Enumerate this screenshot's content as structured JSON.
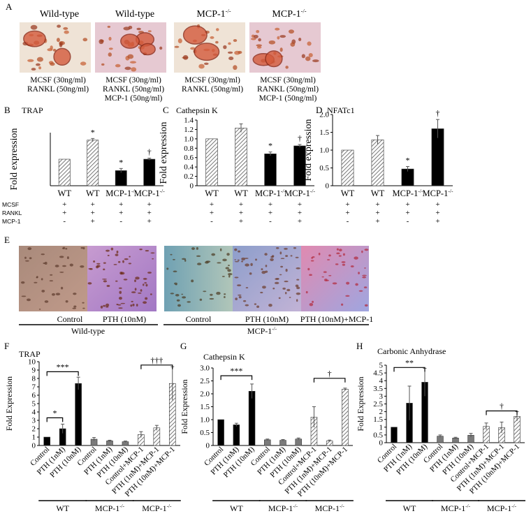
{
  "panel_a": {
    "letter": "A",
    "images": [
      {
        "title": "Wild-type",
        "caption": [
          "MCSF (30ng/ml)",
          "RANKL (50ng/ml)"
        ]
      },
      {
        "title": "Wild-type",
        "caption": [
          "MCSF (30ng/ml)",
          "RANKL (50ng/ml)",
          "MCP-1 (50ng/ml)"
        ]
      },
      {
        "title": "MCP-1",
        "caption": [
          "MCSF (30ng/ml)",
          "RANKL (50ng/ml)"
        ]
      },
      {
        "title": "MCP-1",
        "caption": [
          "MCSF (30ng/ml)",
          "RANKL (50ng/ml)",
          "MCP-1 (50ng/ml)"
        ]
      }
    ],
    "superscript": "-/-"
  },
  "panel_e": {
    "letter": "E",
    "captions": [
      "Control",
      "PTH (10nM)",
      "Control",
      "PTH (10nM)",
      "PTH (10nM)+MCP-1"
    ],
    "group_labels": [
      "Wild-type",
      "MCP-1"
    ],
    "superscript": "-/-"
  },
  "treatment_table": {
    "rows": [
      "MCSF",
      "RANKL",
      "MCP-1"
    ],
    "marks": [
      [
        "+",
        "+",
        "+",
        "+"
      ],
      [
        "+",
        "+",
        "+",
        "+"
      ],
      [
        "-",
        "+",
        "-",
        "+"
      ]
    ]
  },
  "chart_data": [
    {
      "panel": "B",
      "type": "bar",
      "title": "TRAP",
      "ylabel": "Fold expression",
      "categories": [
        "WT",
        "WT",
        "MCP-1-/-",
        "MCP-1-/-"
      ],
      "values": [
        1.0,
        1.72,
        0.57,
        1.0
      ],
      "errors": [
        0,
        0.06,
        0.08,
        0.04
      ],
      "patterns": [
        "hatch",
        "hatch",
        "solid",
        "solid"
      ],
      "annotations": [
        "",
        "*",
        "*",
        "†"
      ],
      "ylim": [
        0,
        2.0
      ],
      "ticks": []
    },
    {
      "panel": "C",
      "type": "bar",
      "title": "Cathepsin K",
      "ylabel": "Fold expression",
      "categories": [
        "WT",
        "WT",
        "MCP-1-/-",
        "MCP-1-/-"
      ],
      "values": [
        1.0,
        1.23,
        0.68,
        0.85
      ],
      "errors": [
        0,
        0.09,
        0.04,
        0.03
      ],
      "patterns": [
        "hatch",
        "hatch",
        "solid",
        "solid"
      ],
      "annotations": [
        "",
        "",
        "*",
        "†"
      ],
      "ylim": [
        0,
        1.4
      ],
      "ticks": [
        "0",
        "0.2",
        "0.4",
        "0.6",
        "0.8",
        "1.0",
        "1.2",
        "1.4"
      ]
    },
    {
      "panel": "D",
      "type": "bar",
      "title": "NFATc1",
      "ylabel": "Fold expression",
      "categories": [
        "WT",
        "WT",
        "MCP-1-/-",
        "MCP-1-/-"
      ],
      "values": [
        1.0,
        1.29,
        0.47,
        1.6
      ],
      "errors": [
        0,
        0.12,
        0.07,
        0.26
      ],
      "patterns": [
        "hatch",
        "hatch",
        "solid",
        "solid"
      ],
      "annotations": [
        "",
        "",
        "*",
        "†"
      ],
      "ylim": [
        0,
        2.0
      ],
      "ticks": [
        "0",
        "0.5",
        "1.0",
        "1.5",
        "2.0"
      ]
    },
    {
      "panel": "F",
      "type": "bar",
      "title": "TRAP",
      "ylabel": "Fold Expression",
      "categories": [
        "Control",
        "PTH (1nM)",
        "PTH (10nM)",
        "Control",
        "PTH (1nM)",
        "PTH (10nM)",
        "Control+MCP-1",
        "PTH (1nM)+MCP-1",
        "PTH (10nM)+MCP-1"
      ],
      "values": [
        1.0,
        2.0,
        7.4,
        0.75,
        0.55,
        0.45,
        1.3,
        2.1,
        7.4
      ],
      "errors": [
        0,
        0.55,
        0.75,
        0.2,
        0.08,
        0.08,
        0.35,
        0.3,
        2.0
      ],
      "patterns": [
        "solid",
        "solid",
        "solid",
        "gray",
        "gray",
        "gray",
        "hatch",
        "hatch",
        "hatch"
      ],
      "ylim": [
        0,
        10
      ],
      "ticks": [
        "0",
        "1",
        "2",
        "3",
        "4",
        "5",
        "6",
        "7",
        "8",
        "9",
        "10"
      ],
      "brackets": [
        {
          "from": 0,
          "to": 1,
          "label": "*",
          "y": 3.3
        },
        {
          "from": 0,
          "to": 2,
          "label": "***",
          "y": 8.8
        },
        {
          "from": 6,
          "to": 8,
          "label": "†††",
          "y": 9.6
        }
      ],
      "groups": [
        "WT",
        "MCP-1",
        "MCP-1"
      ]
    },
    {
      "panel": "G",
      "type": "bar",
      "title": "Cathepsin K",
      "ylabel": "Fold Expression",
      "categories": [
        "Control",
        "PTH (1nM)",
        "PTH (10nM)",
        "Control",
        "PTH (1nM)",
        "PTH (10nM)",
        "Control+MCP-1",
        "PTH (1nM)+MCP-1",
        "PTH (10nM)+MCP-1"
      ],
      "values": [
        1.0,
        0.8,
        2.1,
        0.22,
        0.2,
        0.25,
        1.1,
        0.18,
        2.18
      ],
      "errors": [
        0,
        0.06,
        0.28,
        0.03,
        0.03,
        0.04,
        0.4,
        0.03,
        0.04
      ],
      "patterns": [
        "solid",
        "solid",
        "solid",
        "gray",
        "gray",
        "gray",
        "hatch",
        "hatch",
        "hatch"
      ],
      "ylim": [
        0,
        3.0
      ],
      "ticks": [
        "0",
        "0.5",
        "1.0",
        "1.5",
        "2.0",
        "2.5",
        "3.0"
      ],
      "brackets": [
        {
          "from": 0,
          "to": 2,
          "label": "***",
          "y": 2.7
        },
        {
          "from": 6,
          "to": 8,
          "label": "†",
          "y": 2.6
        }
      ],
      "groups": [
        "WT",
        "MCP-1",
        "MCP-1"
      ]
    },
    {
      "panel": "H",
      "type": "bar",
      "title": "Carbonic Anhydrase",
      "ylabel": "Fold Expression",
      "categories": [
        "Control",
        "PTH (1nM)",
        "PTH (10nM)",
        "Control",
        "PTH (1nM)",
        "PTH (10nM)",
        "Control+MCP-1",
        "PTH (1nM)+MCP-1",
        "PTH (10nM)+MCP-1"
      ],
      "values": [
        1.0,
        2.55,
        3.9,
        0.42,
        0.3,
        0.48,
        1.05,
        0.98,
        1.7
      ],
      "errors": [
        0,
        1.1,
        0.9,
        0.08,
        0.05,
        0.12,
        0.22,
        0.35,
        0.3
      ],
      "patterns": [
        "solid",
        "solid",
        "solid",
        "gray",
        "gray",
        "gray",
        "hatch",
        "hatch",
        "hatch"
      ],
      "ylim": [
        0,
        5
      ],
      "ticks": [
        "0",
        "0.5",
        "1",
        "1.5",
        "2",
        "2.5",
        "3",
        "3.5",
        "4",
        "4.5",
        "5"
      ],
      "brackets": [
        {
          "from": 0,
          "to": 2,
          "label": "**",
          "y": 4.85
        },
        {
          "from": 6,
          "to": 8,
          "label": "†",
          "y": 2.05
        }
      ],
      "groups": [
        "WT",
        "MCP-1",
        "MCP-1"
      ]
    }
  ]
}
